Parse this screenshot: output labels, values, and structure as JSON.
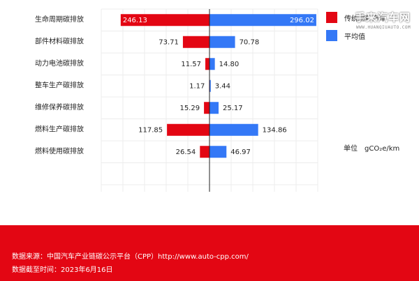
{
  "chart_data": {
    "type": "bar",
    "orientation": "horizontal-diverging",
    "categories": [
      "生命周期碳排放",
      "部件材料碳排放",
      "动力电池碳排放",
      "整车生产碳排放",
      "维修保养碳排放",
      "燃料生产碳排放",
      "燃料使用碳排放"
    ],
    "series": [
      {
        "name": "传统燃料汽车",
        "color": "#e30613",
        "values": [
          246.13,
          73.71,
          11.57,
          1.17,
          15.29,
          117.85,
          26.54
        ],
        "labels": [
          "246.13",
          "73.71",
          "11.57",
          "1.17",
          "15.29",
          "117.85",
          "26.54"
        ]
      },
      {
        "name": "平均值",
        "color": "#3478f6",
        "values": [
          296.02,
          70.78,
          14.8,
          3.44,
          25.17,
          134.86,
          46.97
        ],
        "labels": [
          "296.02",
          "70.78",
          "14.80",
          "3.44",
          "25.17",
          "134.86",
          "46.97"
        ]
      }
    ],
    "xlim": [
      -300,
      300
    ],
    "grid": true,
    "legend": "top-right",
    "unit_label": "单位",
    "unit": "gCO₂e/km"
  },
  "watermark": {
    "text": "手来汽车网",
    "sub": "WWW.HUANQIUAUTO.COM"
  },
  "footer": {
    "source": "数据来源：中国汽车产业链碳公示平台（CPP）http://www.auto-cpp.com/",
    "date": "数据截至时间：2023年6月16日"
  }
}
